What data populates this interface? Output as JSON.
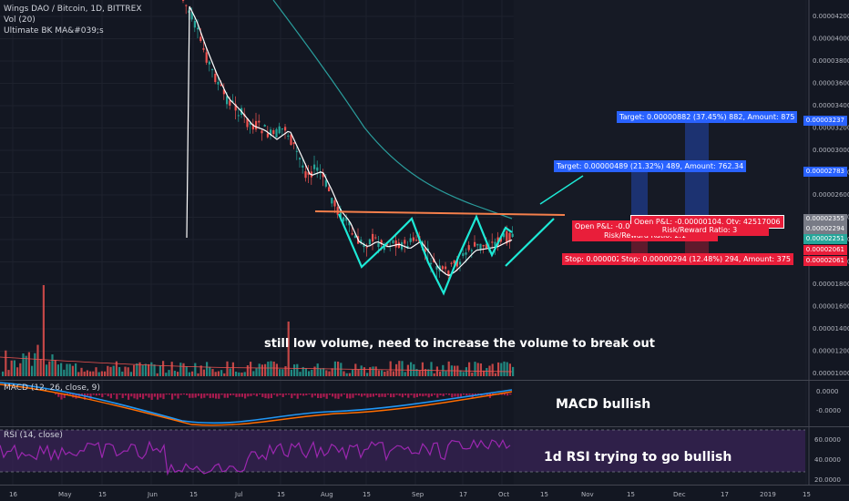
{
  "header": {
    "symbol_line": "Wings DAO / Bitcoin, 1D, BITTREX",
    "vol_label": "Vol (20)",
    "ma_label": "Ultimate BK MA&#039;s"
  },
  "panes": {
    "macd_label": "MACD (12, 26, close, 9)",
    "rsi_label": "RSI (14, close)"
  },
  "annotations": {
    "volume_note": "still low volume, need to increase the volume to break out",
    "macd_note": "MACD bullish",
    "rsi_note": "1d RSI trying to go bullish"
  },
  "trade_boxes": {
    "target1": "Target: 0.00000489 (21.32%) 489, Amount: 762.34",
    "target2": "Target: 0.00000882 (37.45%) 882, Amount: 875",
    "open_pl_1": "Open P&L: -0.00",
    "open_pl_2": "Open P&L: -0.00000104, Qty: 42517006",
    "risk_reward_1": "Risk/Reward Ratio: 2.1",
    "risk_reward_2": "Risk/Reward Ratio: 3",
    "stop_1": "Stop: 0.0000023",
    "stop_2": "Stop: 0.00000294 (12.48%) 294, Amount: 375"
  },
  "price_axis": {
    "highlight_labels": [
      "0.00003237",
      "0.00002783",
      "0.00002355",
      "0.00002294",
      "0.00002251",
      "0.00002061",
      "0.00002061"
    ]
  },
  "colors": {
    "background": "#131722",
    "up": "#26a69a",
    "down": "#ef5350",
    "ma_fast": "#ffffff",
    "ma_slow": "#2a9d9c",
    "pattern": "#1de9d6",
    "resistance": "#f57f4b",
    "rsi_band": "#3a2458",
    "rsi_line": "#9c27b0",
    "macd_line": "#2196f3",
    "signal_line": "#ff6d00",
    "target_box": "#2962ff",
    "stop_box": "#e91e3a"
  },
  "chart_data": {
    "type": "candlestick",
    "title": "Wings DAO / Bitcoin, 1D, BITTREX",
    "price_ticks": [
      "0.00004200",
      "0.00004000",
      "0.00003800",
      "0.00003600",
      "0.00003400",
      "0.00003200",
      "0.00003000",
      "0.00002800",
      "0.00002600",
      "0.00002400",
      "0.00002200",
      "0.00002000",
      "0.00001800",
      "0.00001600",
      "0.00001400",
      "0.00001200",
      "0.00001000"
    ],
    "macd_ticks": [
      "0.0000",
      "-0.0000"
    ],
    "rsi_ticks": [
      "60.0000",
      "40.0000",
      "20.0000"
    ],
    "x_ticks": [
      "16",
      "May",
      "15",
      "Jun",
      "15",
      "Jul",
      "15",
      "Aug",
      "15",
      "Sep",
      "17",
      "Oct",
      "15",
      "Nov",
      "15",
      "Dec",
      "17",
      "2019",
      "15"
    ],
    "price_close_approx": [
      4.2e-05,
      4.1e-05,
      3.95e-05,
      3.8e-05,
      3.62e-05,
      3.45e-05,
      3.3e-05,
      3.18e-05,
      3.05e-05,
      2.9e-05,
      2.75e-05,
      2.6e-05,
      2.45e-05,
      2.3e-05,
      2.15e-05,
      2.12e-05,
      2.2e-05,
      2.1e-05,
      2e-05,
      2.08e-05,
      1.95e-05,
      1.85e-05,
      1.78e-05,
      1.9e-05,
      2.05e-05,
      2.12e-05,
      2.08e-05,
      2.22e-05
    ],
    "ranges": {
      "price": [
        9e-06,
        4.3e-05
      ],
      "rsi": [
        10,
        75
      ]
    },
    "legend": "top-left"
  }
}
